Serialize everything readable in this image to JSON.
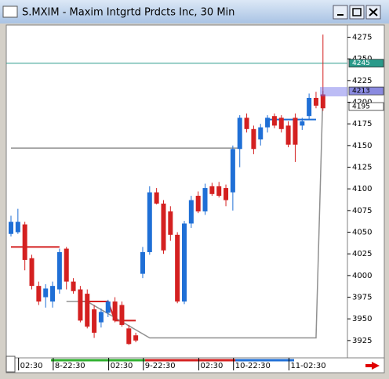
{
  "chart_data": {
    "type": "candlestick",
    "title": "S.MXIM - Maxim Intgrtd Prdcts Inc, 30 Min",
    "up_color": "#1f6fd6",
    "down_color": "#d42020",
    "categories": [
      null,
      null,
      "02:30",
      null,
      null,
      null,
      null,
      "8-22:30",
      null,
      null,
      null,
      null,
      null,
      null,
      null,
      "02:30",
      null,
      null,
      null,
      null,
      "9-22:30",
      null,
      null,
      null,
      null,
      null,
      null,
      null,
      "02:30",
      null,
      null,
      null,
      null,
      "10-22:30",
      null,
      null,
      null,
      null,
      null,
      null,
      null,
      "11-02:30",
      null,
      null,
      null,
      null
    ],
    "open": [
      4048,
      4050,
      4059,
      4020,
      3988,
      3975,
      3970,
      3984,
      4031,
      3993,
      3984,
      3979,
      3961,
      3946,
      3957,
      3970,
      3966,
      3939,
      3931,
      4002,
      4027,
      4096,
      4083,
      4074,
      4047,
      3970,
      4060,
      4092,
      4074,
      4103,
      4103,
      4101,
      4096,
      4146,
      4182,
      4169,
      4157,
      4171,
      4184,
      4182,
      4173,
      4182,
      4173,
      4184,
      4205,
      4209
    ],
    "high": [
      4069,
      4077,
      4062,
      4024,
      3993,
      3990,
      3993,
      4031,
      4033,
      3997,
      3988,
      3984,
      3966,
      3962,
      3972,
      3975,
      3970,
      3943,
      3934,
      4033,
      4103,
      4101,
      4087,
      4080,
      4050,
      4063,
      4092,
      4097,
      4106,
      4107,
      4108,
      4105,
      4150,
      4185,
      4187,
      4173,
      4175,
      4185,
      4187,
      4185,
      4178,
      4187,
      4182,
      4210,
      4212,
      4278
    ],
    "low": [
      4045,
      4048,
      4006,
      3984,
      3966,
      3963,
      3963,
      3979,
      3984,
      3979,
      3946,
      3939,
      3928,
      3940,
      3952,
      3946,
      3941,
      3920,
      3923,
      3997,
      4024,
      4082,
      4025,
      4040,
      3968,
      3967,
      4055,
      4072,
      4070,
      4092,
      4090,
      4080,
      4075,
      4125,
      4165,
      4140,
      4150,
      4165,
      4170,
      4165,
      4148,
      4131,
      4168,
      4180,
      4193,
      4190
    ],
    "close": [
      4062,
      4062,
      4018,
      3988,
      3970,
      3985,
      3988,
      4027,
      3993,
      3982,
      3948,
      3941,
      3934,
      3958,
      3970,
      3948,
      3943,
      3921,
      3925,
      4027,
      4096,
      4083,
      4029,
      4047,
      3970,
      4060,
      4087,
      4074,
      4101,
      4094,
      4092,
      4087,
      4146,
      4182,
      4169,
      4146,
      4171,
      4182,
      4173,
      4169,
      4151,
      4151,
      4178,
      4205,
      4196,
      4193
    ],
    "overlays": [
      {
        "color": "#d42020",
        "x": [
          0,
          7
        ],
        "values": [
          4033,
          4033
        ]
      },
      {
        "color": "#d42020",
        "x": [
          10,
          14,
          15,
          18
        ],
        "values": [
          3970,
          3970,
          3948,
          3948
        ]
      },
      {
        "color": "#909090",
        "x": [
          8,
          11,
          20,
          44,
          45
        ],
        "values": [
          3970,
          3970,
          3928,
          3928,
          4213
        ]
      },
      {
        "color": "#909090",
        "x": [
          0,
          33
        ],
        "values": [
          4147,
          4147
        ]
      },
      {
        "color": "#1f6fd6",
        "x": [
          37,
          44
        ],
        "values": [
          4180,
          4180
        ]
      }
    ],
    "levels": [
      {
        "value": 4245,
        "color": "#2a9a8a"
      }
    ],
    "price_flags": [
      4245,
      4213,
      4195
    ],
    "ylim": [
      3905,
      4289
    ],
    "yticks": [
      3925,
      3950,
      3975,
      4000,
      4025,
      4050,
      4075,
      4100,
      4125,
      4150,
      4175,
      4200,
      4225,
      4250,
      4275
    ]
  }
}
